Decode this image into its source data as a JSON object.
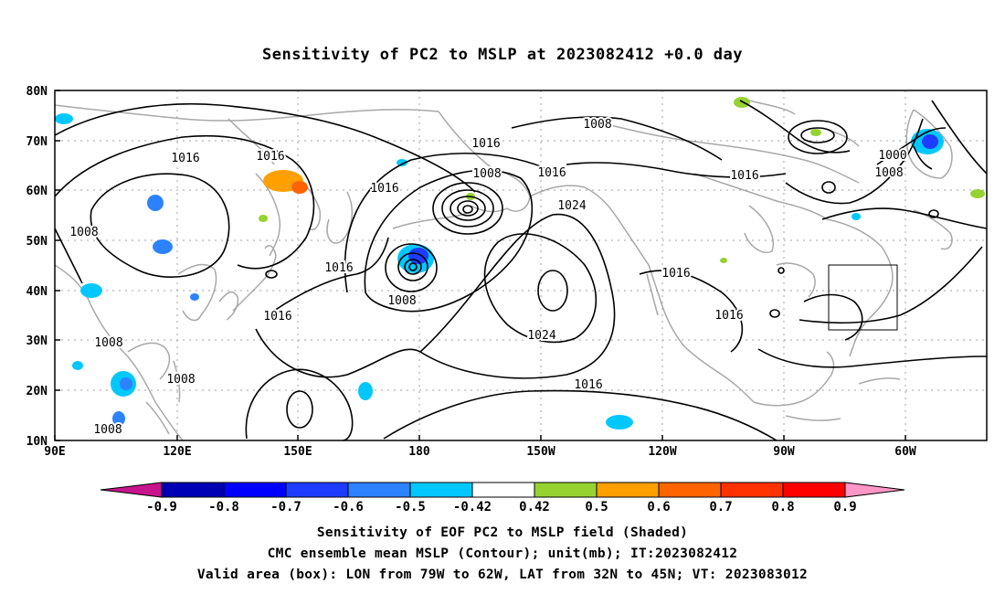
{
  "title": "Sensitivity of PC2 to MSLP at 2023082412 +0.0 day",
  "lat_labels": [
    "80N",
    "70N",
    "60N",
    "50N",
    "40N",
    "30N",
    "20N",
    "10N"
  ],
  "lon_labels": [
    "90E",
    "120E",
    "150E",
    "180",
    "150W",
    "120W",
    "90W",
    "60W"
  ],
  "contour_labels": [
    "1016",
    "1016",
    "1016",
    "1016",
    "1016",
    "1016",
    "1016",
    "1016",
    "1016",
    "1016",
    "1016",
    "1008",
    "1008",
    "1008",
    "1008",
    "1008",
    "1008",
    "1008",
    "1008",
    "1000",
    "1024",
    "1024"
  ],
  "colorbar": {
    "labels": [
      "-0.9",
      "-0.8",
      "-0.7",
      "-0.6",
      "-0.5",
      "-0.42",
      "0.42",
      "0.5",
      "0.6",
      "0.7",
      "0.8",
      "0.9"
    ],
    "colors": [
      "#c8148c",
      "#0000b4",
      "#0000ff",
      "#1e3cff",
      "#2d82ff",
      "#00c8ff",
      "#ffffff",
      "#96d232",
      "#ffa000",
      "#ff6400",
      "#ff3200",
      "#ff0000",
      "#ff96c8"
    ]
  },
  "captions": {
    "line1": "Sensitivity of EOF PC2 to MSLP field (Shaded)",
    "line2": "CMC ensemble mean MSLP (Contour); unit(mb); IT:2023082412",
    "line3": "Valid area (box): LON from 79W to 62W, LAT from 32N to 45N; VT: 2023083012"
  }
}
